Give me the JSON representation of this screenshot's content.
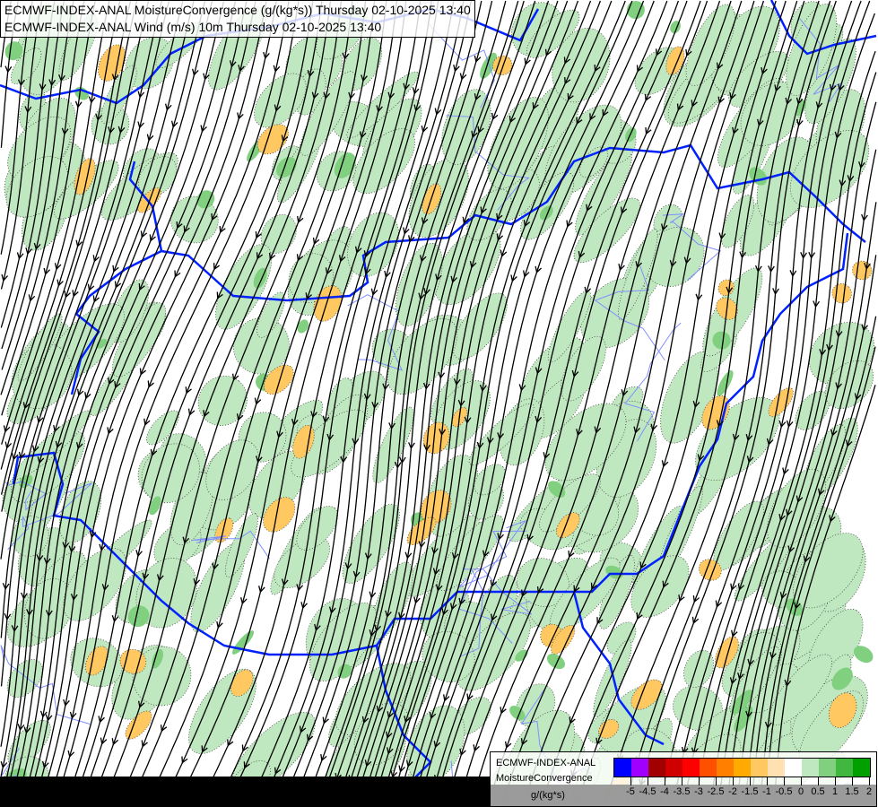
{
  "title_lines": [
    "ECMWF-INDEX-ANAL MoistureConvergence (g/(kg*s)) Thursday 02-10-2025 13:40",
    "ECMWF-INDEX-ANAL Wind (m/s) 10m Thursday 02-10-2025 13:40"
  ],
  "legend": {
    "model": "ECMWF-INDEX-ANAL",
    "parameter": "MoistureConvergence",
    "unit": "g/(kg*s)",
    "colors": [
      "#0000ff",
      "#a000ff",
      "#a00000",
      "#d00000",
      "#ff0000",
      "#ff5000",
      "#ff8000",
      "#ffaa00",
      "#ffc860",
      "#ffe0b0",
      "#ffffff",
      "#c0e8c0",
      "#80d080",
      "#40b840",
      "#00a000"
    ],
    "ticks": [
      "-5",
      "-4.5",
      "-4",
      "-3.5",
      "-3",
      "-2.5",
      "-2",
      "-1.5",
      "-1",
      "-0.5",
      "0",
      "0.5",
      "1",
      "1.5",
      "2"
    ]
  },
  "colors": {
    "border": "#0022ff",
    "river": "#7f8fff",
    "streamline": "#000000",
    "convergence": "#c0e8c0",
    "convergence_strong": "#80d080",
    "divergence": "#ffc860"
  }
}
